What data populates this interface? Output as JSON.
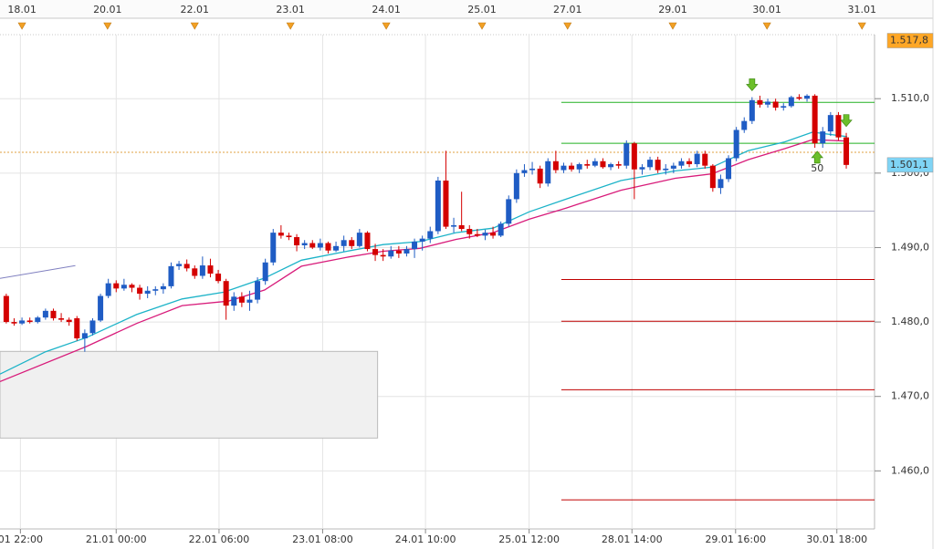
{
  "chart_data": {
    "type": "candlestick",
    "up_color": "#1f5cc4",
    "down_color": "#d40000",
    "xlim": [
      -0.8,
      110.6
    ],
    "ylim": [
      1.4522,
      1.5186
    ],
    "grid": true,
    "yticks": [
      {
        "value": 1.46,
        "label": "1.460,0"
      },
      {
        "value": 1.47,
        "label": "1.470,0"
      },
      {
        "value": 1.48,
        "label": "1.480,0"
      },
      {
        "value": 1.49,
        "label": "1.490,0"
      },
      {
        "value": 1.5,
        "label": "1.500,0"
      },
      {
        "value": 1.51,
        "label": "1.510,0"
      }
    ],
    "xticks": [
      {
        "value": 1.8,
        "label": "01 22:00"
      },
      {
        "value": 14,
        "label": "21.01 00:00"
      },
      {
        "value": 27.1,
        "label": "22.01 06:00"
      },
      {
        "value": 40.3,
        "label": "23.01 08:00"
      },
      {
        "value": 53.4,
        "label": "24.01 10:00"
      },
      {
        "value": 66.6,
        "label": "25.01 12:00"
      },
      {
        "value": 79.7,
        "label": "28.01 14:00"
      },
      {
        "value": 92.9,
        "label": "29.01 16:00"
      },
      {
        "value": 105.8,
        "label": "30.01 18:00"
      }
    ],
    "top_dates": [
      {
        "value": 2,
        "label": "18.01"
      },
      {
        "value": 12.9,
        "label": "20.01"
      },
      {
        "value": 24,
        "label": "22.01"
      },
      {
        "value": 36.2,
        "label": "23.01"
      },
      {
        "value": 48.4,
        "label": "24.01"
      },
      {
        "value": 60.6,
        "label": "25.01"
      },
      {
        "value": 71.5,
        "label": "27.01"
      },
      {
        "value": 84.9,
        "label": "29.01"
      },
      {
        "value": 96.9,
        "label": "30.01"
      },
      {
        "value": 109,
        "label": "31.01"
      }
    ],
    "ohlc": [
      [
        1.4835,
        1.4838,
        1.4798,
        1.48
      ],
      [
        1.48,
        1.4805,
        1.4795,
        1.4798
      ],
      [
        1.4798,
        1.4806,
        1.4796,
        1.4802
      ],
      [
        1.4802,
        1.4806,
        1.4798,
        1.48
      ],
      [
        1.48,
        1.4808,
        1.4798,
        1.4806
      ],
      [
        1.4806,
        1.4818,
        1.4803,
        1.4815
      ],
      [
        1.4815,
        1.4818,
        1.4802,
        1.4805
      ],
      [
        1.4805,
        1.4812,
        1.48,
        1.4803
      ],
      [
        1.4803,
        1.4806,
        1.4795,
        1.48
      ],
      [
        1.4805,
        1.4808,
        1.4775,
        1.4778
      ],
      [
        1.4778,
        1.479,
        1.476,
        1.4785
      ],
      [
        1.4785,
        1.4805,
        1.4782,
        1.4802
      ],
      [
        1.4802,
        1.4838,
        1.48,
        1.4835
      ],
      [
        1.4835,
        1.4858,
        1.4832,
        1.4852
      ],
      [
        1.4852,
        1.4856,
        1.484,
        1.4845
      ],
      [
        1.4845,
        1.4858,
        1.4842,
        1.485
      ],
      [
        1.485,
        1.4852,
        1.484,
        1.4846
      ],
      [
        1.4846,
        1.485,
        1.483,
        1.4838
      ],
      [
        1.4838,
        1.4848,
        1.4832,
        1.4842
      ],
      [
        1.4842,
        1.4848,
        1.4836,
        1.4844
      ],
      [
        1.4844,
        1.4852,
        1.4838,
        1.4848
      ],
      [
        1.4848,
        1.488,
        1.4845,
        1.4875
      ],
      [
        1.4875,
        1.4882,
        1.487,
        1.4878
      ],
      [
        1.4878,
        1.4884,
        1.4868,
        1.4872
      ],
      [
        1.4872,
        1.4876,
        1.4858,
        1.4862
      ],
      [
        1.4862,
        1.4888,
        1.4858,
        1.4876
      ],
      [
        1.4876,
        1.4885,
        1.486,
        1.4865
      ],
      [
        1.4865,
        1.487,
        1.4852,
        1.4855
      ],
      [
        1.4855,
        1.4858,
        1.4803,
        1.4822
      ],
      [
        1.4822,
        1.484,
        1.4815,
        1.4834
      ],
      [
        1.4834,
        1.484,
        1.482,
        1.4826
      ],
      [
        1.4826,
        1.4842,
        1.4815,
        1.483
      ],
      [
        1.483,
        1.486,
        1.4825,
        1.4855
      ],
      [
        1.4855,
        1.4885,
        1.485,
        1.488
      ],
      [
        1.488,
        1.4925,
        1.4876,
        1.492
      ],
      [
        1.492,
        1.493,
        1.4912,
        1.4916
      ],
      [
        1.4916,
        1.492,
        1.491,
        1.4914
      ],
      [
        1.4914,
        1.4918,
        1.4895,
        1.4903
      ],
      [
        1.4903,
        1.491,
        1.4898,
        1.4906
      ],
      [
        1.4906,
        1.491,
        1.4898,
        1.49
      ],
      [
        1.49,
        1.4912,
        1.4896,
        1.4906
      ],
      [
        1.4906,
        1.4908,
        1.4892,
        1.4896
      ],
      [
        1.4896,
        1.4908,
        1.4894,
        1.4902
      ],
      [
        1.4902,
        1.4916,
        1.4895,
        1.491
      ],
      [
        1.491,
        1.4914,
        1.4898,
        1.4902
      ],
      [
        1.4902,
        1.4925,
        1.49,
        1.492
      ],
      [
        1.492,
        1.4922,
        1.4895,
        1.4898
      ],
      [
        1.4898,
        1.4905,
        1.4882,
        1.489
      ],
      [
        1.489,
        1.4898,
        1.4882,
        1.4888
      ],
      [
        1.4888,
        1.4902,
        1.4885,
        1.4896
      ],
      [
        1.4896,
        1.4902,
        1.4886,
        1.4892
      ],
      [
        1.4892,
        1.4902,
        1.4888,
        1.4898
      ],
      [
        1.4898,
        1.4912,
        1.4886,
        1.4908
      ],
      [
        1.4908,
        1.4916,
        1.4896,
        1.4912
      ],
      [
        1.4912,
        1.4928,
        1.4906,
        1.4922
      ],
      [
        1.4922,
        1.4995,
        1.4918,
        1.499
      ],
      [
        1.499,
        1.503,
        1.4925,
        1.4928
      ],
      [
        1.4928,
        1.494,
        1.492,
        1.493
      ],
      [
        1.493,
        1.4975,
        1.4922,
        1.4925
      ],
      [
        1.4925,
        1.493,
        1.4912,
        1.4918
      ],
      [
        1.4918,
        1.4925,
        1.4914,
        1.4916
      ],
      [
        1.4916,
        1.4924,
        1.491,
        1.492
      ],
      [
        1.492,
        1.4928,
        1.4912,
        1.4916
      ],
      [
        1.4916,
        1.4935,
        1.4914,
        1.4932
      ],
      [
        1.4932,
        1.497,
        1.4928,
        1.4965
      ],
      [
        1.4965,
        1.5005,
        1.496,
        1.5
      ],
      [
        1.5,
        1.5012,
        1.4995,
        1.5004
      ],
      [
        1.5004,
        1.5015,
        1.4998,
        1.5006
      ],
      [
        1.5006,
        1.501,
        1.498,
        1.4986
      ],
      [
        1.4986,
        1.502,
        1.4982,
        1.5016
      ],
      [
        1.5016,
        1.503,
        1.5,
        1.5004
      ],
      [
        1.5004,
        1.5014,
        1.5,
        1.501
      ],
      [
        1.501,
        1.5014,
        1.5002,
        1.5005
      ],
      [
        1.5005,
        1.5014,
        1.5,
        1.5012
      ],
      [
        1.5012,
        1.5018,
        1.5006,
        1.501
      ],
      [
        1.501,
        1.502,
        1.5008,
        1.5016
      ],
      [
        1.5016,
        1.502,
        1.5006,
        1.5008
      ],
      [
        1.5008,
        1.5014,
        1.5004,
        1.5012
      ],
      [
        1.5012,
        1.5016,
        1.5006,
        1.501
      ],
      [
        1.501,
        1.5044,
        1.5006,
        1.504
      ],
      [
        1.504,
        1.5042,
        1.4965,
        1.5005
      ],
      [
        1.5005,
        1.5012,
        1.4998,
        1.5008
      ],
      [
        1.5008,
        1.5022,
        1.5004,
        1.5018
      ],
      [
        1.5018,
        1.5022,
        1.5,
        1.5004
      ],
      [
        1.5004,
        1.5012,
        1.4998,
        1.5006
      ],
      [
        1.5006,
        1.5014,
        1.5,
        1.501
      ],
      [
        1.501,
        1.502,
        1.5006,
        1.5016
      ],
      [
        1.5016,
        1.502,
        1.5008,
        1.5012
      ],
      [
        1.5012,
        1.503,
        1.5008,
        1.5026
      ],
      [
        1.5026,
        1.503,
        1.5006,
        1.501
      ],
      [
        1.501,
        1.5012,
        1.4975,
        1.498
      ],
      [
        1.498,
        1.4998,
        1.4972,
        1.4992
      ],
      [
        1.4992,
        1.5024,
        1.4988,
        1.502
      ],
      [
        1.502,
        1.5062,
        1.5016,
        1.5058
      ],
      [
        1.5058,
        1.5075,
        1.5054,
        1.507
      ],
      [
        1.507,
        1.5102,
        1.5066,
        1.5098
      ],
      [
        1.5098,
        1.5104,
        1.5088,
        1.5092
      ],
      [
        1.5092,
        1.51,
        1.5088,
        1.5096
      ],
      [
        1.5096,
        1.51,
        1.5084,
        1.5088
      ],
      [
        1.5088,
        1.5094,
        1.5084,
        1.509
      ],
      [
        1.509,
        1.5104,
        1.5088,
        1.5102
      ],
      [
        1.5102,
        1.5106,
        1.5098,
        1.51
      ],
      [
        1.51,
        1.5106,
        1.5096,
        1.5104
      ],
      [
        1.5104,
        1.5106,
        1.5034,
        1.504
      ],
      [
        1.504,
        1.5062,
        1.5034,
        1.5056
      ],
      [
        1.5056,
        1.5082,
        1.505,
        1.5078
      ],
      [
        1.5078,
        1.5082,
        1.5044,
        1.5048
      ],
      [
        1.5048,
        1.5054,
        1.5006,
        1.5011
      ]
    ],
    "series": [
      {
        "color": "#1cb3c8",
        "x": [
          -0.8,
          5,
          10.2,
          16.6,
          22.4,
          27.7,
          32.9,
          37.6,
          43.4,
          48,
          52.7,
          57.3,
          62,
          66.6,
          71.3,
          78.3,
          85.2,
          89.9,
          94.5,
          99.2,
          102.7,
          107.1
        ],
        "values": [
          1.473,
          1.476,
          1.4779,
          1.481,
          1.4831,
          1.484,
          1.4859,
          1.4883,
          1.4895,
          1.4904,
          1.4908,
          1.492,
          1.4926,
          1.4948,
          1.4965,
          1.499,
          1.5003,
          1.5008,
          1.503,
          1.5042,
          1.5055,
          1.5049
        ]
      },
      {
        "color": "#d81b7a",
        "x": [
          -0.8,
          10.2,
          16.6,
          22.4,
          28.3,
          32.9,
          37.6,
          43.4,
          48,
          52.7,
          57.3,
          62,
          66.6,
          71.3,
          78.3,
          85.2,
          89.9,
          94.5,
          99.2,
          102.7,
          107.1
        ],
        "values": [
          1.472,
          1.4767,
          1.4798,
          1.4822,
          1.4828,
          1.4843,
          1.4875,
          1.4887,
          1.4895,
          1.4899,
          1.4911,
          1.492,
          1.4938,
          1.4953,
          1.4977,
          1.4993,
          1.4999,
          1.5018,
          1.5033,
          1.5045,
          1.5043
        ]
      }
    ],
    "levels": [
      {
        "value": 1.5095,
        "x": 70.7,
        "color": "#22b022"
      },
      {
        "value": 1.504,
        "x": 70.7,
        "color": "#22b022"
      },
      {
        "value": 1.4949,
        "x": 68.9,
        "color": "#b0b0c8"
      },
      {
        "value": 1.4857,
        "x": 70.7,
        "color": "#c00000"
      },
      {
        "value": 1.4801,
        "x": 70.7,
        "color": "#c00000"
      },
      {
        "value": 1.4709,
        "x": 70.7,
        "color": "#c00000"
      },
      {
        "value": 1.4561,
        "x": 70.7,
        "color": "#c00000"
      }
    ],
    "current_line": {
      "value": 1.5028,
      "color": "#e0a040"
    },
    "zone": {
      "x": [
        -0.8,
        47.3
      ],
      "y": [
        1.46441,
        1.47605
      ],
      "color": "#f0f0f0"
    },
    "trendline": {
      "x": [
        -0.8,
        8.8
      ],
      "values": [
        1.48586,
        1.48757
      ],
      "color": "#8080c0"
    },
    "signals": [
      {
        "type": "down",
        "x": 95,
        "y": 1.5118
      },
      {
        "type": "down",
        "x": 107,
        "y": 1.507
      },
      {
        "type": "up",
        "x": 103.3,
        "y": 1.5022,
        "label": "50"
      }
    ],
    "price_labels": [
      {
        "value": 1.5178,
        "label": "1.517,8",
        "color": "#ffa726"
      },
      {
        "value": 1.5011,
        "label": "1.501,1",
        "color": "#7fd4f5"
      }
    ]
  }
}
